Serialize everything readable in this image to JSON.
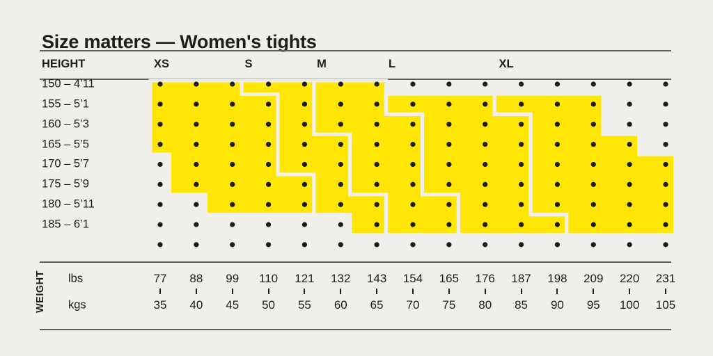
{
  "title": "Size matters — Women's tights",
  "table": {
    "height_header": "HEIGHT",
    "weight_axis_label": "WEIGHT",
    "weight_units": {
      "lbs": "lbs",
      "kgs": "kgs"
    }
  },
  "chart_data": {
    "type": "heatmap",
    "title": "Size matters — Women's tights",
    "legend_position": "top",
    "grid": "dot-matrix 15 weight columns × 8 height rows, plus 1 unhighlighted dot row at bottom",
    "row_axis": {
      "label": "HEIGHT",
      "heights": [
        "150 – 4’11",
        "155 – 5’1",
        "160 – 5’3",
        "165 – 5’5",
        "170 – 5’7",
        "175 – 5’9",
        "180 – 5’11",
        "185 – 6’1"
      ]
    },
    "col_axis": {
      "label": "WEIGHT",
      "lbs": [
        77,
        88,
        99,
        110,
        121,
        132,
        143,
        154,
        165,
        176,
        187,
        198,
        209,
        220,
        231
      ],
      "kgs": [
        35,
        40,
        45,
        50,
        55,
        60,
        65,
        70,
        75,
        80,
        85,
        90,
        95,
        100,
        105
      ]
    },
    "sizes": [
      {
        "name": "XS",
        "weight_cols_by_height_row": [
          [
            1,
            3
          ],
          [
            1,
            4
          ],
          [
            1,
            4
          ],
          [
            1,
            4
          ],
          [
            2,
            4
          ],
          [
            2,
            5
          ],
          [
            3,
            5
          ],
          null
        ]
      },
      {
        "name": "S",
        "weight_cols_by_height_row": [
          [
            4,
            5
          ],
          [
            5,
            5
          ],
          [
            5,
            5
          ],
          [
            5,
            6
          ],
          [
            5,
            6
          ],
          [
            6,
            6
          ],
          [
            6,
            7
          ],
          [
            7,
            7
          ]
        ]
      },
      {
        "name": "M",
        "weight_cols_by_height_row": [
          [
            6,
            7
          ],
          [
            6,
            7
          ],
          [
            6,
            8
          ],
          [
            7,
            8
          ],
          [
            7,
            8
          ],
          [
            7,
            8
          ],
          [
            8,
            9
          ],
          [
            8,
            9
          ]
        ]
      },
      {
        "name": "L",
        "weight_cols_by_height_row": [
          null,
          [
            8,
            10
          ],
          [
            9,
            11
          ],
          [
            9,
            11
          ],
          [
            9,
            11
          ],
          [
            9,
            11
          ],
          [
            10,
            11
          ],
          [
            10,
            12
          ]
        ]
      },
      {
        "name": "XL",
        "weight_cols_by_height_row": [
          null,
          [
            11,
            13
          ],
          [
            12,
            13
          ],
          [
            12,
            14
          ],
          [
            12,
            15
          ],
          [
            12,
            15
          ],
          [
            12,
            15
          ],
          [
            13,
            15
          ]
        ]
      }
    ],
    "colors": {
      "band": "#ffe605",
      "dot": "#1c1c1a",
      "background": "#f0efec",
      "rule": "#5d5d58",
      "text": "#1c1c1a"
    }
  }
}
